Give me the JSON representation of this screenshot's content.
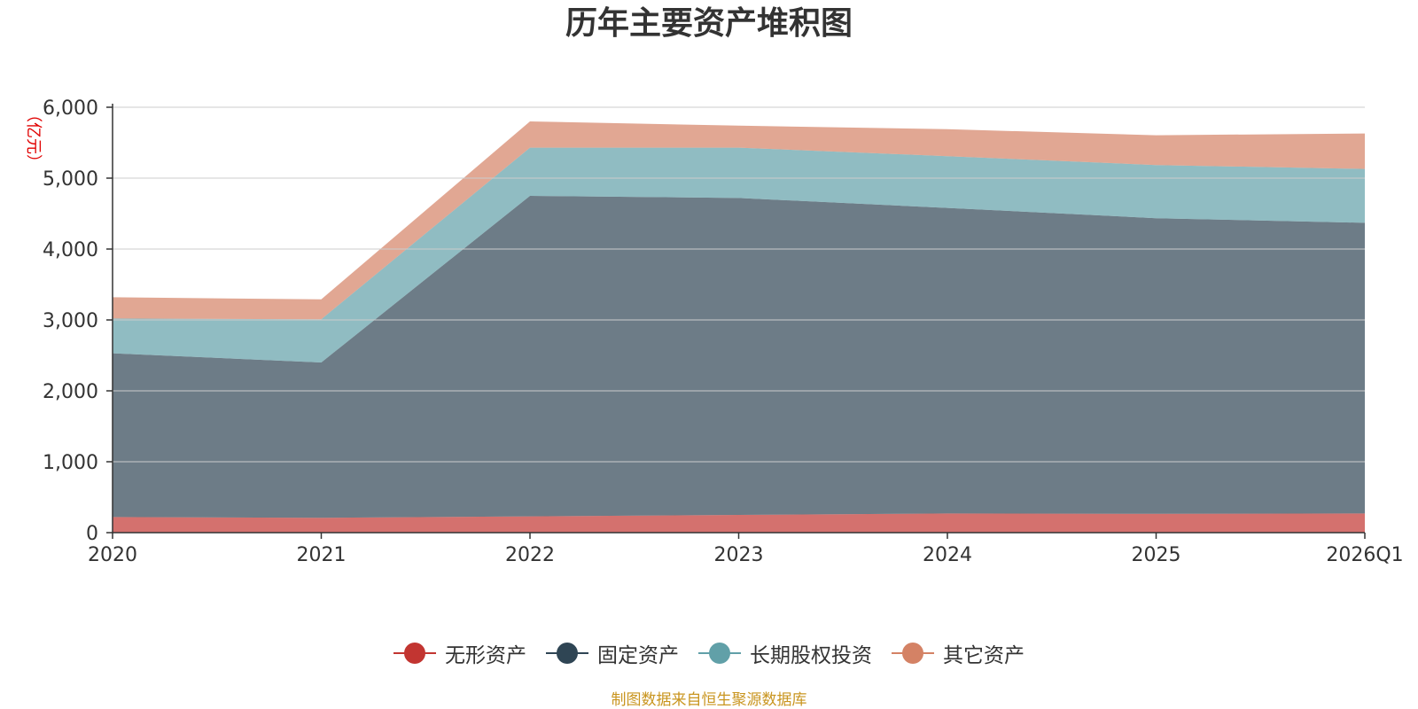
{
  "chart_data": {
    "type": "area",
    "stacked": true,
    "title": "历年主要资产堆积图",
    "unit_label": "亿元",
    "x": [
      "2020",
      "2021",
      "2022",
      "2023",
      "2024",
      "2025",
      "2026Q1"
    ],
    "ylim": [
      0,
      6000
    ],
    "yticks": [
      0,
      1000,
      2000,
      3000,
      4000,
      5000,
      6000
    ],
    "ytick_labels": [
      "0",
      "1,000",
      "2,000",
      "3,000",
      "4,000",
      "5,000",
      "6,000"
    ],
    "grid": true,
    "legend_position": "bottom",
    "series": [
      {
        "name": "无形资产",
        "color": "#c23531",
        "values": [
          220,
          210,
          230,
          250,
          270,
          265,
          270
        ]
      },
      {
        "name": "固定资产",
        "color": "#2f4554",
        "values": [
          2310,
          2190,
          4520,
          4470,
          4310,
          4170,
          4100
        ]
      },
      {
        "name": "长期股权投资",
        "color": "#61a0a8",
        "values": [
          490,
          610,
          680,
          710,
          730,
          750,
          760
        ]
      },
      {
        "name": "其它资产",
        "color": "#d48265",
        "values": [
          300,
          280,
          370,
          310,
          380,
          420,
          500
        ]
      }
    ]
  },
  "source_text": "制图数据来自恒生聚源数据库"
}
